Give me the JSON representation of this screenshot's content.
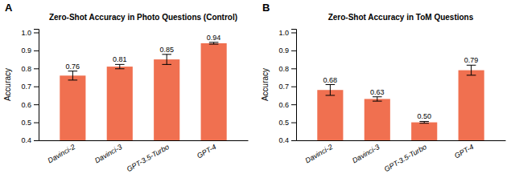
{
  "chart_data": [
    {
      "type": "bar",
      "title": "Zero-Shot Accuracy in Photo Questions (Control)",
      "annotations": [
        "A"
      ],
      "ylabel": "Accuracy",
      "categories": [
        "Davinci-2",
        "Davinci-3",
        "GPT-3.5-Turbo",
        "GPT-4"
      ],
      "values": [
        0.76,
        0.81,
        0.85,
        0.94
      ],
      "errors": [
        0.025,
        0.012,
        0.028,
        0.005
      ],
      "color": "#F07050",
      "ylim": [
        0.4,
        1.02
      ],
      "yticks": [
        0.4,
        0.5,
        0.6,
        0.7,
        0.8,
        0.9,
        {
          "value": 1.0,
          "label": "1.0"
        }
      ],
      "data_labels": true,
      "grid": false
    },
    {
      "type": "bar",
      "title": "Zero-Shot Accuracy in ToM Questions",
      "annotations": [
        "B"
      ],
      "ylabel": "Accuracy",
      "categories": [
        "Davinci-2",
        "Davinci-3",
        "GPT-3.5-Turbo",
        "GPT-4"
      ],
      "values": [
        0.68,
        0.63,
        0.5,
        0.79
      ],
      "value_labels": [
        "0.68",
        "0.63",
        "0.50",
        "0.79"
      ],
      "errors": [
        0.03,
        0.012,
        0.005,
        0.028
      ],
      "color": "#F07050",
      "ylim": [
        0.4,
        1.02
      ],
      "yticks": [
        0.4,
        0.5,
        0.6,
        0.7,
        0.8,
        0.9,
        {
          "value": 1.0,
          "label": "1.0"
        }
      ],
      "data_labels": true,
      "grid": false
    }
  ]
}
